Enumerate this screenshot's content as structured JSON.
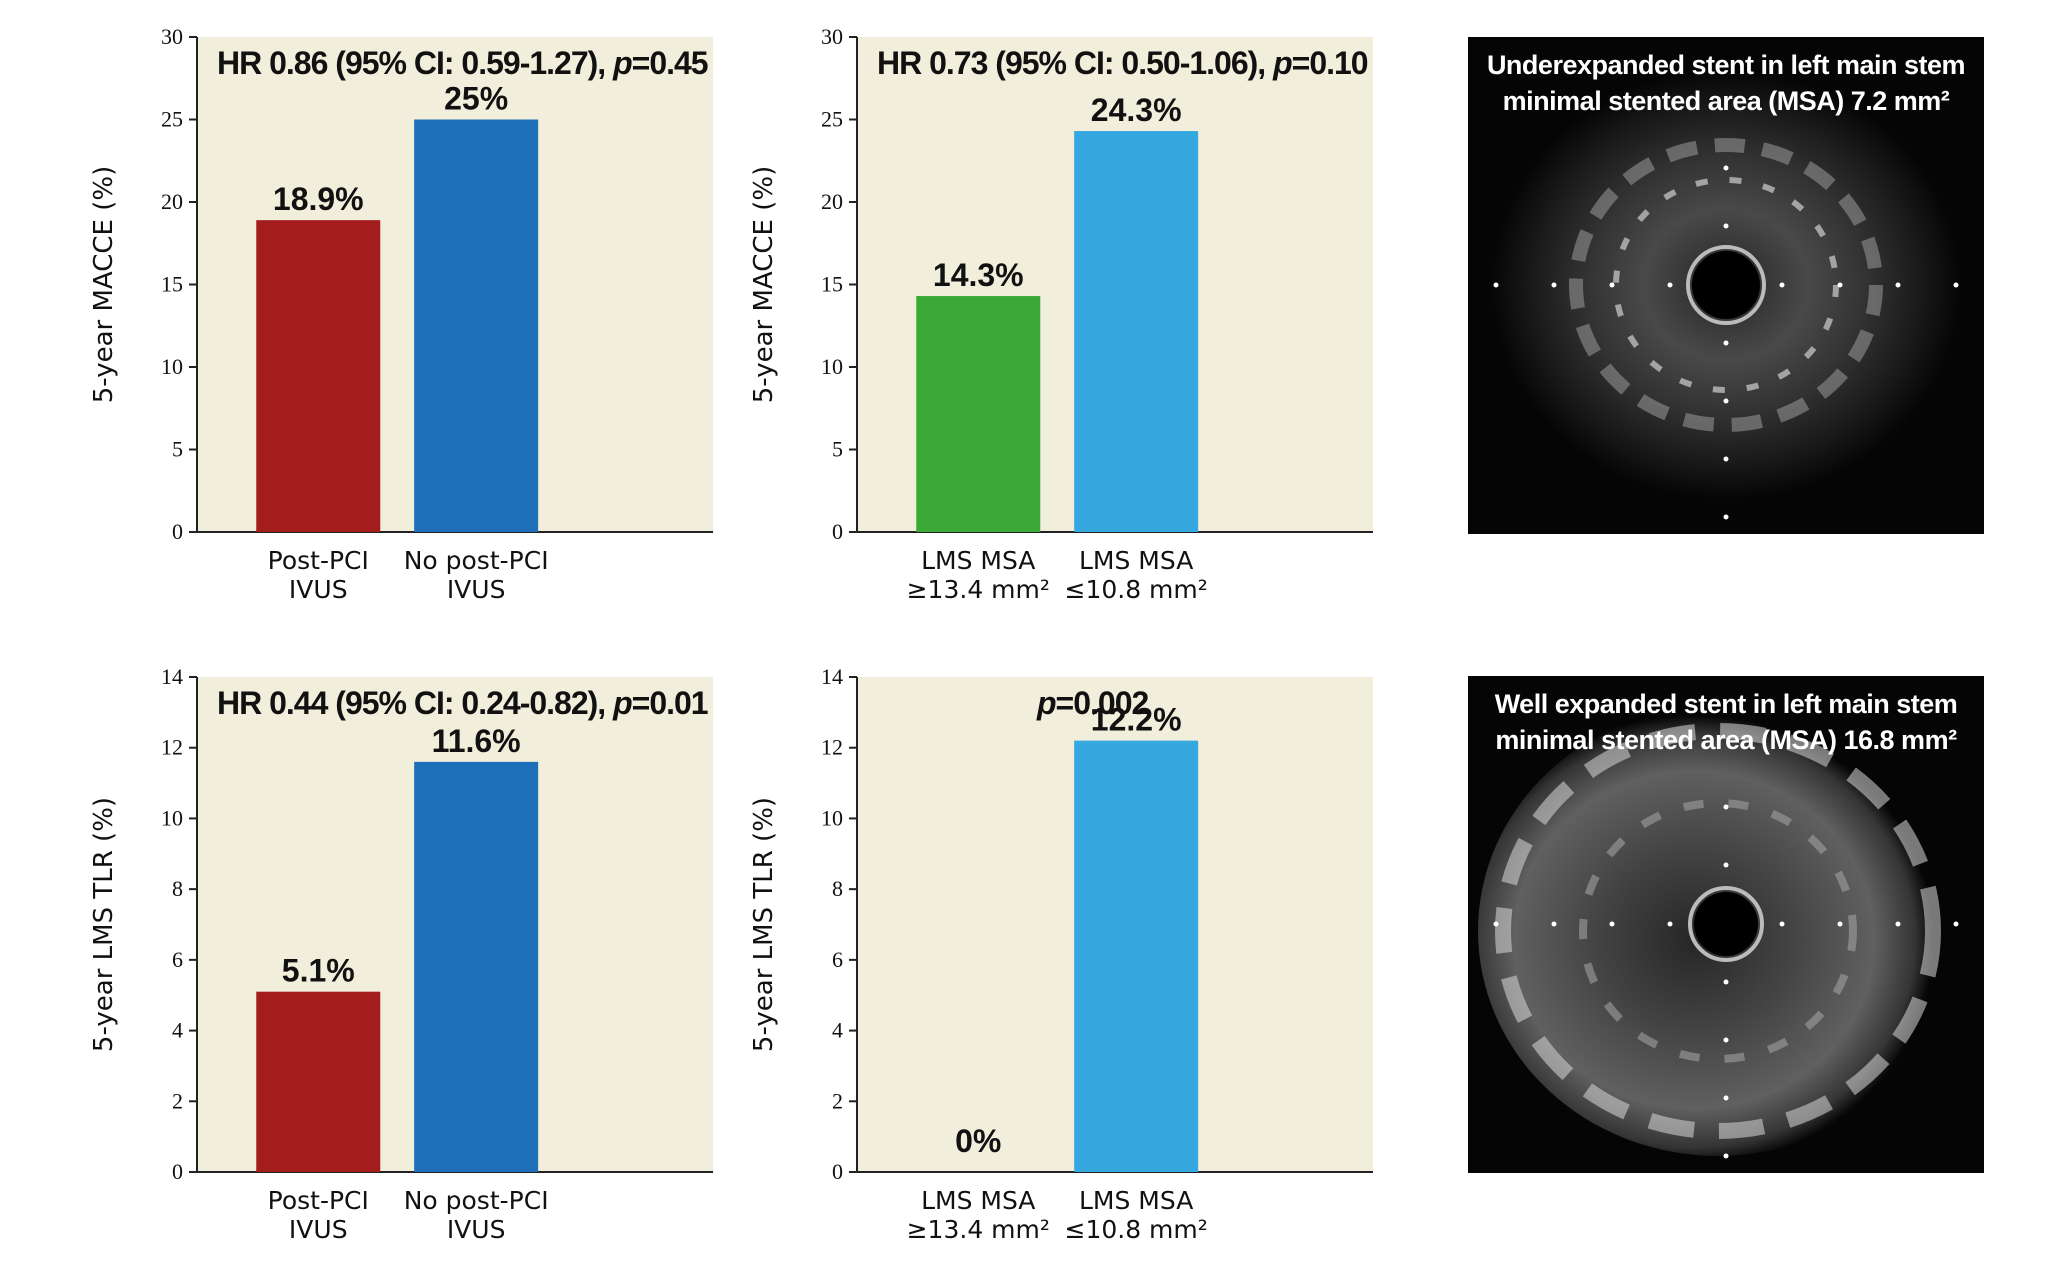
{
  "chart_data": [
    {
      "type": "bar",
      "ylabel": "5-year MACCE (%)",
      "ylim": [
        0,
        30
      ],
      "yticks": [
        0,
        5,
        10,
        15,
        20,
        25,
        30
      ],
      "categories": [
        [
          "Post-PCI",
          "IVUS"
        ],
        [
          "No post-PCI",
          "IVUS"
        ]
      ],
      "values": [
        18.9,
        25
      ],
      "value_labels": [
        "18.9%",
        "25%"
      ],
      "bar_colors": [
        "#A41C1C",
        "#1E6FB9"
      ],
      "annotation": {
        "prefix": "HR 0.86 (95% CI: 0.59-1.27), ",
        "p": "p",
        "suffix": "=0.45"
      },
      "background": "#F2EEDC"
    },
    {
      "type": "bar",
      "ylabel": "5-year MACCE (%)",
      "ylim": [
        0,
        30
      ],
      "yticks": [
        0,
        5,
        10,
        15,
        20,
        25,
        30
      ],
      "categories": [
        [
          "LMS MSA",
          "≥13.4 mm²"
        ],
        [
          "LMS MSA",
          "≤10.8 mm²"
        ]
      ],
      "values": [
        14.3,
        24.3
      ],
      "value_labels": [
        "14.3%",
        "24.3%"
      ],
      "bar_colors": [
        "#3BA935",
        "#35A8E0"
      ],
      "annotation": {
        "prefix": "HR 0.73 (95% CI: 0.50-1.06), ",
        "p": "p",
        "suffix": "=0.10"
      },
      "background": "#F2EEDC"
    },
    {
      "type": "bar",
      "ylabel": "5-year LMS TLR (%)",
      "ylim": [
        0,
        14
      ],
      "yticks": [
        0,
        2,
        4,
        6,
        8,
        10,
        12,
        14
      ],
      "categories": [
        [
          "Post-PCI",
          "IVUS"
        ],
        [
          "No post-PCI",
          "IVUS"
        ]
      ],
      "values": [
        5.1,
        11.6
      ],
      "value_labels": [
        "5.1%",
        "11.6%"
      ],
      "bar_colors": [
        "#A41C1C",
        "#1E6FB9"
      ],
      "annotation": {
        "prefix": "HR 0.44 (95% CI: 0.24-0.82), ",
        "p": "p",
        "suffix": "=0.01"
      },
      "background": "#F2EEDC"
    },
    {
      "type": "bar",
      "ylabel": "5-year LMS TLR (%)",
      "ylim": [
        0,
        14
      ],
      "yticks": [
        0,
        2,
        4,
        6,
        8,
        10,
        12,
        14
      ],
      "categories": [
        [
          "LMS MSA",
          "≥13.4 mm²"
        ],
        [
          "LMS MSA",
          "≤10.8 mm²"
        ]
      ],
      "values": [
        0,
        12.2
      ],
      "value_labels": [
        "0%",
        "12.2%"
      ],
      "bar_colors": [
        "#3BA935",
        "#35A8E0"
      ],
      "annotation": {
        "prefix": "",
        "p": "p",
        "suffix": "=0.002"
      },
      "background": "#F2EEDC"
    }
  ],
  "images": {
    "top": {
      "caption_line1": "Underexpanded stent in left main stem",
      "caption_line2": "minimal stented area (MSA) 7.2 mm²"
    },
    "bottom": {
      "caption_line1": "Well expanded stent in left main stem",
      "caption_line2": "minimal stented area (MSA) 16.8 mm²"
    }
  }
}
